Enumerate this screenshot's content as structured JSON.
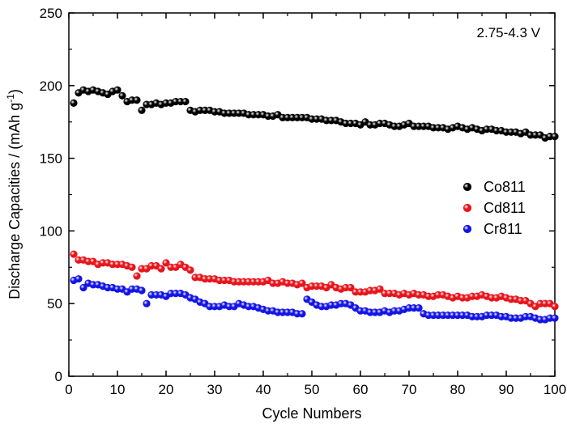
{
  "chart_data": {
    "type": "scatter",
    "title": "",
    "annotation": "2.75-4.3 V",
    "xlabel": "Cycle Numbers",
    "ylabel_main": "Discharge Capacities / (mAh g",
    "ylabel_sup": "-1",
    "ylabel_end": ")",
    "xlim": [
      0,
      100
    ],
    "ylim": [
      0,
      250
    ],
    "xticks": [
      0,
      10,
      20,
      30,
      40,
      50,
      60,
      70,
      80,
      90,
      100
    ],
    "yticks": [
      0,
      50,
      100,
      150,
      200,
      250
    ],
    "legend_position": "right-middle",
    "series": [
      {
        "name": "Co811",
        "color": "#000000",
        "x": [
          1,
          2,
          3,
          4,
          5,
          6,
          7,
          8,
          9,
          10,
          11,
          12,
          13,
          14,
          15,
          16,
          17,
          18,
          19,
          20,
          21,
          22,
          23,
          24,
          25,
          26,
          27,
          28,
          29,
          30,
          31,
          32,
          33,
          34,
          35,
          36,
          37,
          38,
          39,
          40,
          41,
          42,
          43,
          44,
          45,
          46,
          47,
          48,
          49,
          50,
          51,
          52,
          53,
          54,
          55,
          56,
          57,
          58,
          59,
          60,
          61,
          62,
          63,
          64,
          65,
          66,
          67,
          68,
          69,
          70,
          71,
          72,
          73,
          74,
          75,
          76,
          77,
          78,
          79,
          80,
          81,
          82,
          83,
          84,
          85,
          86,
          87,
          88,
          89,
          90,
          91,
          92,
          93,
          94,
          95,
          96,
          97,
          98,
          99,
          100
        ],
        "y": [
          188,
          195,
          197,
          196,
          197,
          196,
          195,
          194,
          196,
          197,
          193,
          189,
          190,
          190,
          183,
          187,
          187,
          188,
          187,
          188,
          188,
          189,
          189,
          189,
          183,
          182,
          183,
          183,
          183,
          182,
          182,
          181,
          181,
          181,
          181,
          181,
          180,
          180,
          180,
          180,
          179,
          179,
          180,
          178,
          178,
          178,
          178,
          178,
          178,
          177,
          177,
          177,
          176,
          176,
          176,
          175,
          174,
          174,
          174,
          173,
          175,
          173,
          173,
          174,
          174,
          173,
          172,
          172,
          173,
          174,
          172,
          172,
          172,
          172,
          171,
          171,
          171,
          170,
          171,
          172,
          171,
          170,
          171,
          170,
          169,
          170,
          170,
          169,
          169,
          168,
          168,
          168,
          167,
          168,
          166,
          166,
          166,
          164,
          165,
          165
        ]
      },
      {
        "name": "Cd811",
        "color": "#e8141c",
        "x": [
          1,
          2,
          3,
          4,
          5,
          6,
          7,
          8,
          9,
          10,
          11,
          12,
          13,
          14,
          15,
          16,
          17,
          18,
          19,
          20,
          21,
          22,
          23,
          24,
          25,
          26,
          27,
          28,
          29,
          30,
          31,
          32,
          33,
          34,
          35,
          36,
          37,
          38,
          39,
          40,
          41,
          42,
          43,
          44,
          45,
          46,
          47,
          48,
          49,
          50,
          51,
          52,
          53,
          54,
          55,
          56,
          57,
          58,
          59,
          60,
          61,
          62,
          63,
          64,
          65,
          66,
          67,
          68,
          69,
          70,
          71,
          72,
          73,
          74,
          75,
          76,
          77,
          78,
          79,
          80,
          81,
          82,
          83,
          84,
          85,
          86,
          87,
          88,
          89,
          90,
          91,
          92,
          93,
          94,
          95,
          96,
          97,
          98,
          99,
          100
        ],
        "y": [
          84,
          80,
          80,
          79,
          79,
          77,
          78,
          78,
          77,
          77,
          77,
          76,
          75,
          69,
          74,
          74,
          76,
          76,
          74,
          78,
          75,
          75,
          77,
          75,
          73,
          68,
          68,
          67,
          67,
          67,
          66,
          66,
          66,
          65,
          65,
          65,
          65,
          65,
          65,
          65,
          66,
          64,
          64,
          65,
          64,
          64,
          63,
          64,
          61,
          62,
          62,
          62,
          61,
          63,
          61,
          60,
          61,
          61,
          58,
          58,
          58,
          59,
          59,
          60,
          57,
          57,
          57,
          56,
          57,
          56,
          57,
          56,
          56,
          55,
          55,
          56,
          56,
          55,
          54,
          55,
          54,
          54,
          55,
          55,
          56,
          55,
          54,
          54,
          55,
          54,
          53,
          53,
          52,
          52,
          50,
          48,
          50,
          50,
          50,
          48
        ]
      },
      {
        "name": "Cr811",
        "color": "#1414e6",
        "x": [
          1,
          2,
          3,
          4,
          5,
          6,
          7,
          8,
          9,
          10,
          11,
          12,
          13,
          14,
          15,
          16,
          17,
          18,
          19,
          20,
          21,
          22,
          23,
          24,
          25,
          26,
          27,
          28,
          29,
          30,
          31,
          32,
          33,
          34,
          35,
          36,
          37,
          38,
          39,
          40,
          41,
          42,
          43,
          44,
          45,
          46,
          47,
          48,
          49,
          50,
          51,
          52,
          53,
          54,
          55,
          56,
          57,
          58,
          59,
          60,
          61,
          62,
          63,
          64,
          65,
          66,
          67,
          68,
          69,
          70,
          71,
          72,
          73,
          74,
          75,
          76,
          77,
          78,
          79,
          80,
          81,
          82,
          83,
          84,
          85,
          86,
          87,
          88,
          89,
          90,
          91,
          92,
          93,
          94,
          95,
          96,
          97,
          98,
          99,
          100
        ],
        "y": [
          66,
          67,
          61,
          64,
          63,
          63,
          62,
          61,
          61,
          60,
          60,
          58,
          60,
          60,
          59,
          50,
          56,
          56,
          56,
          55,
          57,
          57,
          57,
          56,
          54,
          53,
          51,
          50,
          48,
          48,
          48,
          49,
          48,
          48,
          50,
          49,
          48,
          48,
          47,
          46,
          45,
          45,
          44,
          44,
          44,
          44,
          43,
          43,
          53,
          51,
          49,
          48,
          48,
          49,
          49,
          50,
          50,
          49,
          47,
          45,
          45,
          44,
          44,
          44,
          45,
          44,
          45,
          45,
          46,
          47,
          47,
          47,
          43,
          42,
          42,
          42,
          42,
          42,
          42,
          42,
          42,
          42,
          41,
          41,
          41,
          42,
          42,
          42,
          41,
          41,
          40,
          40,
          40,
          41,
          41,
          40,
          39,
          39,
          40,
          40
        ]
      }
    ]
  }
}
